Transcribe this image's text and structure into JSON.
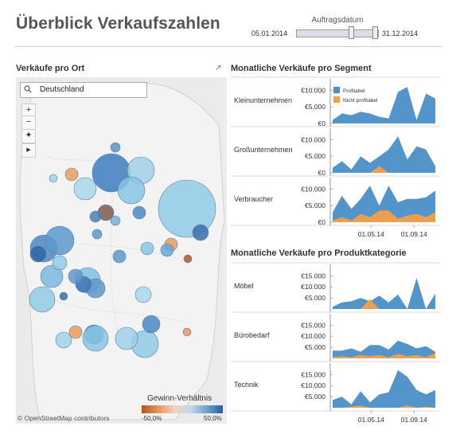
{
  "header": {
    "title": "Überblick Verkaufszahlen",
    "filter_label": "Auftragsdatum",
    "date_start": "05.01.2014",
    "date_end": "31.12.2014"
  },
  "map": {
    "title": "Verkäufe pro Ort",
    "search_value": "Deutschland",
    "zoom_in": "+",
    "zoom_out": "−",
    "pin": "✦",
    "play": "▸",
    "attribution": "© OpenStreetMap contributors",
    "legend_title": "Gewinn-Verhältnis",
    "legend_min": "-50,0%",
    "legend_max": "50,0%",
    "colors": {
      "map_bg": "#e8e8e8",
      "positive": "#2a5f97",
      "negative": "#b2541c"
    }
  },
  "segment_panel": {
    "title": "Monatliche Verkäufe pro Segment",
    "legend": [
      "Profitabel",
      "Nicht profitabel"
    ]
  },
  "category_panel": {
    "title": "Monatliche Verkäufe pro Produktkategorie"
  },
  "chart_data": [
    {
      "type": "area",
      "title": "Monatliche Verkäufe pro Segment",
      "x_ticks": [
        "01.05.14",
        "01.09.14"
      ],
      "colors": {
        "Profitabel": "#4a8fc7",
        "Nicht profitabel": "#f5a044"
      },
      "rows": [
        {
          "label": "Kleinunternehmen",
          "y_ticks": [
            "€10.000",
            "€5.000",
            "€0"
          ],
          "ylim": [
            0,
            12000
          ],
          "series": [
            {
              "name": "Profitabel",
              "values": [
                1000,
                3000,
                2500,
                3500,
                3000,
                2000,
                1500,
                9500,
                11000,
                1000,
                9000,
                7500
              ]
            },
            {
              "name": "Nicht profitabel",
              "values": [
                0,
                0,
                0,
                0,
                0,
                0,
                0,
                0,
                0,
                0,
                0,
                0
              ]
            }
          ]
        },
        {
          "label": "Großunternehmen",
          "y_ticks": [
            "€10.000",
            "€5.000",
            "€0"
          ],
          "ylim": [
            0,
            12000
          ],
          "series": [
            {
              "name": "Profitabel",
              "values": [
                1500,
                3500,
                1000,
                5000,
                3000,
                5000,
                7000,
                11000,
                4000,
                8000,
                7000,
                2000
              ]
            },
            {
              "name": "Nicht profitabel",
              "values": [
                0,
                0,
                0,
                0,
                0,
                2000,
                0,
                0,
                0,
                0,
                0,
                0
              ]
            }
          ]
        },
        {
          "label": "Verbraucher",
          "y_ticks": [
            "€10.000",
            "€5.000",
            "€0"
          ],
          "ylim": [
            0,
            12000
          ],
          "series": [
            {
              "name": "Profitabel",
              "values": [
                3000,
                8000,
                4000,
                7000,
                11000,
                5000,
                11000,
                6000,
                7000,
                7000,
                7500,
                9500
              ]
            },
            {
              "name": "Nicht profitabel",
              "values": [
                500,
                1500,
                500,
                2500,
                1500,
                3500,
                3500,
                1000,
                2000,
                2500,
                1500,
                3000
              ]
            }
          ]
        }
      ]
    },
    {
      "type": "area",
      "title": "Monatliche Verkäufe pro Produktkategorie",
      "x_ticks": [
        "01.05.14",
        "01.09.14"
      ],
      "colors": {
        "Profitabel": "#4a8fc7",
        "Nicht profitabel": "#f5a044"
      },
      "rows": [
        {
          "label": "Möbel",
          "y_ticks": [
            "€15.000",
            "€10.000",
            "€5.000"
          ],
          "ylim": [
            0,
            18000
          ],
          "series": [
            {
              "name": "Profitabel",
              "values": [
                1000,
                3000,
                3500,
                5000,
                3500,
                6000,
                3000,
                6500,
                0,
                14000,
                0,
                7000
              ]
            },
            {
              "name": "Nicht profitabel",
              "values": [
                0,
                0,
                0,
                0,
                4500,
                0,
                0,
                0,
                0,
                0,
                0,
                0
              ]
            }
          ]
        },
        {
          "label": "Bürobedarf",
          "y_ticks": [
            "€15.000",
            "€10.000",
            "€5.000"
          ],
          "ylim": [
            0,
            18000
          ],
          "series": [
            {
              "name": "Profitabel",
              "values": [
                3500,
                3500,
                4500,
                3000,
                6000,
                6000,
                4000,
                8000,
                6500,
                4500,
                5500,
                3000
              ]
            },
            {
              "name": "Nicht profitabel",
              "values": [
                500,
                1000,
                500,
                1500,
                1000,
                1500,
                500,
                2000,
                1000,
                1500,
                500,
                2500
              ]
            }
          ]
        },
        {
          "label": "Technik",
          "y_ticks": [
            "€15.000",
            "€10.000",
            "€5.000"
          ],
          "ylim": [
            0,
            18000
          ],
          "series": [
            {
              "name": "Profitabel",
              "values": [
                3500,
                5000,
                1500,
                7500,
                2500,
                6000,
                7000,
                17000,
                14000,
                8000,
                6000,
                8000
              ]
            },
            {
              "name": "Nicht profitabel",
              "values": [
                0,
                0,
                500,
                1000,
                0,
                0,
                0,
                0,
                1000,
                0,
                500,
                0
              ]
            }
          ]
        }
      ]
    }
  ]
}
